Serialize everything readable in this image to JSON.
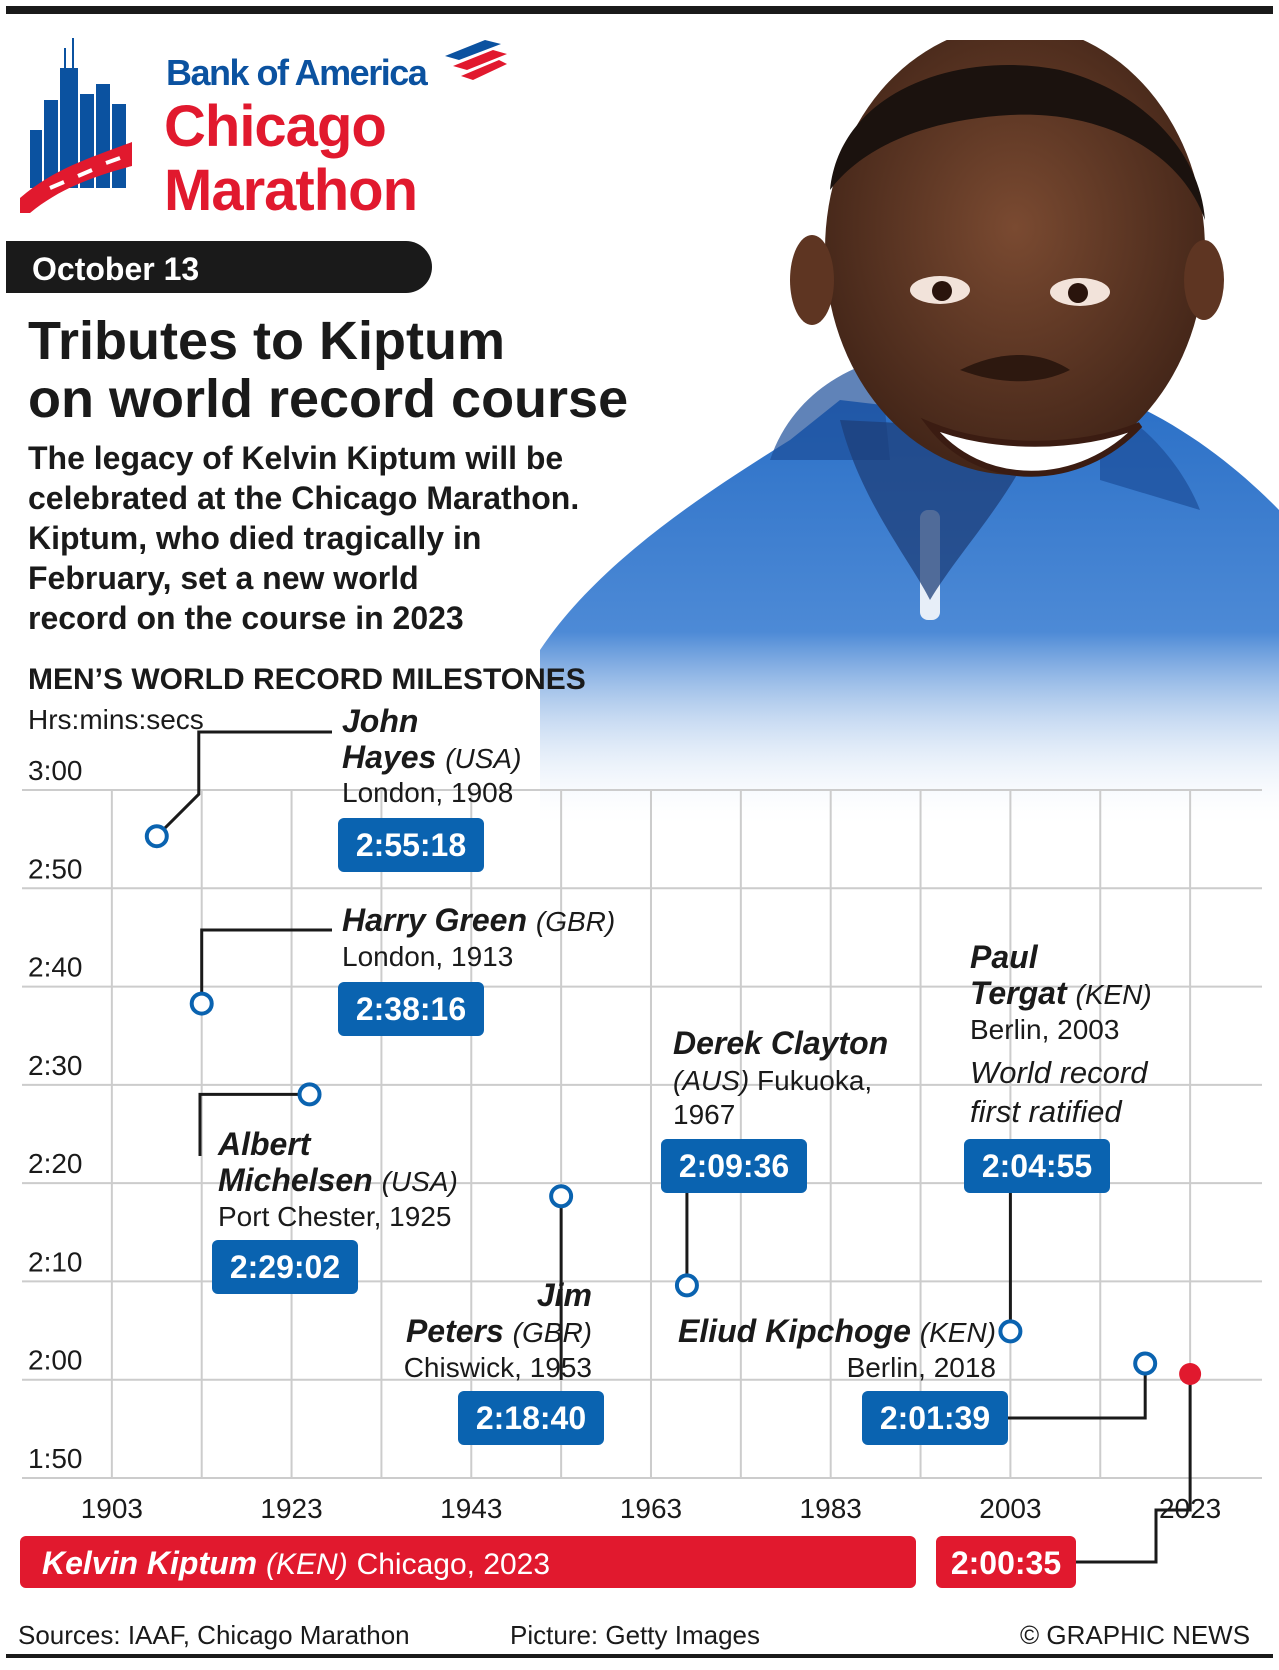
{
  "header": {
    "sponsor": "Bank of America",
    "event_line1": "Chicago",
    "event_line2": "Marathon",
    "date": "October 13"
  },
  "headline": {
    "title_line1": "Tributes to Kiptum",
    "title_line2": "on world record course",
    "sub_lines": [
      "The legacy of Kelvin Kiptum will be",
      "celebrated at the Chicago Marathon.",
      "Kiptum, who died tragically in",
      "February, set a new world",
      "record on the course in 2023"
    ]
  },
  "footer": {
    "sources": "Sources: IAAF, Chicago Marathon",
    "picture": "Picture: Getty Images",
    "copyright": "© GRAPHIC NEWS"
  },
  "colors": {
    "blue": "#0a63b0",
    "red": "#e1192e",
    "dark": "#1a1a1a",
    "grid": "#cccccc"
  },
  "chart_data": {
    "type": "scatter",
    "title": "MEN’S WORLD RECORD MILESTONES",
    "ylabel": "Hrs:mins:secs",
    "xlim": [
      1893,
      2031
    ],
    "ylim_minutes": [
      110,
      180
    ],
    "x_ticks": [
      1903,
      1923,
      1943,
      1963,
      1983,
      2003,
      2023
    ],
    "x_tick_labels": [
      "1903",
      "1923",
      "1943",
      "1963",
      "1983",
      "2003",
      "2023"
    ],
    "y_ticks_minutes": [
      110,
      120,
      130,
      140,
      150,
      160,
      170,
      180
    ],
    "y_tick_labels": [
      "1:50",
      "2:00",
      "2:10",
      "2:20",
      "2:30",
      "2:40",
      "2:50",
      "3:00"
    ],
    "grid": true,
    "records": [
      {
        "athlete_first": "John",
        "athlete_last": "Hayes",
        "country": "(USA)",
        "place_year": "London, 1908",
        "year": 1908,
        "time": "2:55:18",
        "minutes": 175.3
      },
      {
        "athlete": "Harry Green",
        "country": "(GBR)",
        "place_year": "London, 1913",
        "year": 1913,
        "time": "2:38:16",
        "minutes": 158.27
      },
      {
        "athlete_first": "Albert",
        "athlete_last": "Michelsen",
        "country": "(USA)",
        "place_year": "Port Chester, 1925",
        "year": 1925,
        "time": "2:29:02",
        "minutes": 149.03
      },
      {
        "athlete_first": "Jim",
        "athlete_last": "Peters",
        "country": "(GBR)",
        "place_year": "Chiswick, 1953",
        "year": 1953,
        "time": "2:18:40",
        "minutes": 138.67
      },
      {
        "athlete": "Derek Clayton",
        "country": "(AUS)",
        "place": "Fukuoka,",
        "year_label": "1967",
        "year": 1967,
        "time": "2:09:36",
        "minutes": 129.6
      },
      {
        "athlete_first": "Paul",
        "athlete_last": "Tergat",
        "country": "(KEN)",
        "place_year": "Berlin, 2003",
        "note_line1": "World record",
        "note_line2": "first ratified",
        "year": 2003,
        "time": "2:04:55",
        "minutes": 124.92
      },
      {
        "athlete": "Eliud Kipchoge",
        "country": "(KEN)",
        "place_year": "Berlin, 2018",
        "year": 2018,
        "time": "2:01:39",
        "minutes": 121.65
      },
      {
        "athlete": "Kelvin Kiptum",
        "country": "(KEN)",
        "place_year": "Chicago, 2023",
        "year": 2023,
        "time": "2:00:35",
        "minutes": 120.58,
        "highlight": true
      }
    ]
  }
}
